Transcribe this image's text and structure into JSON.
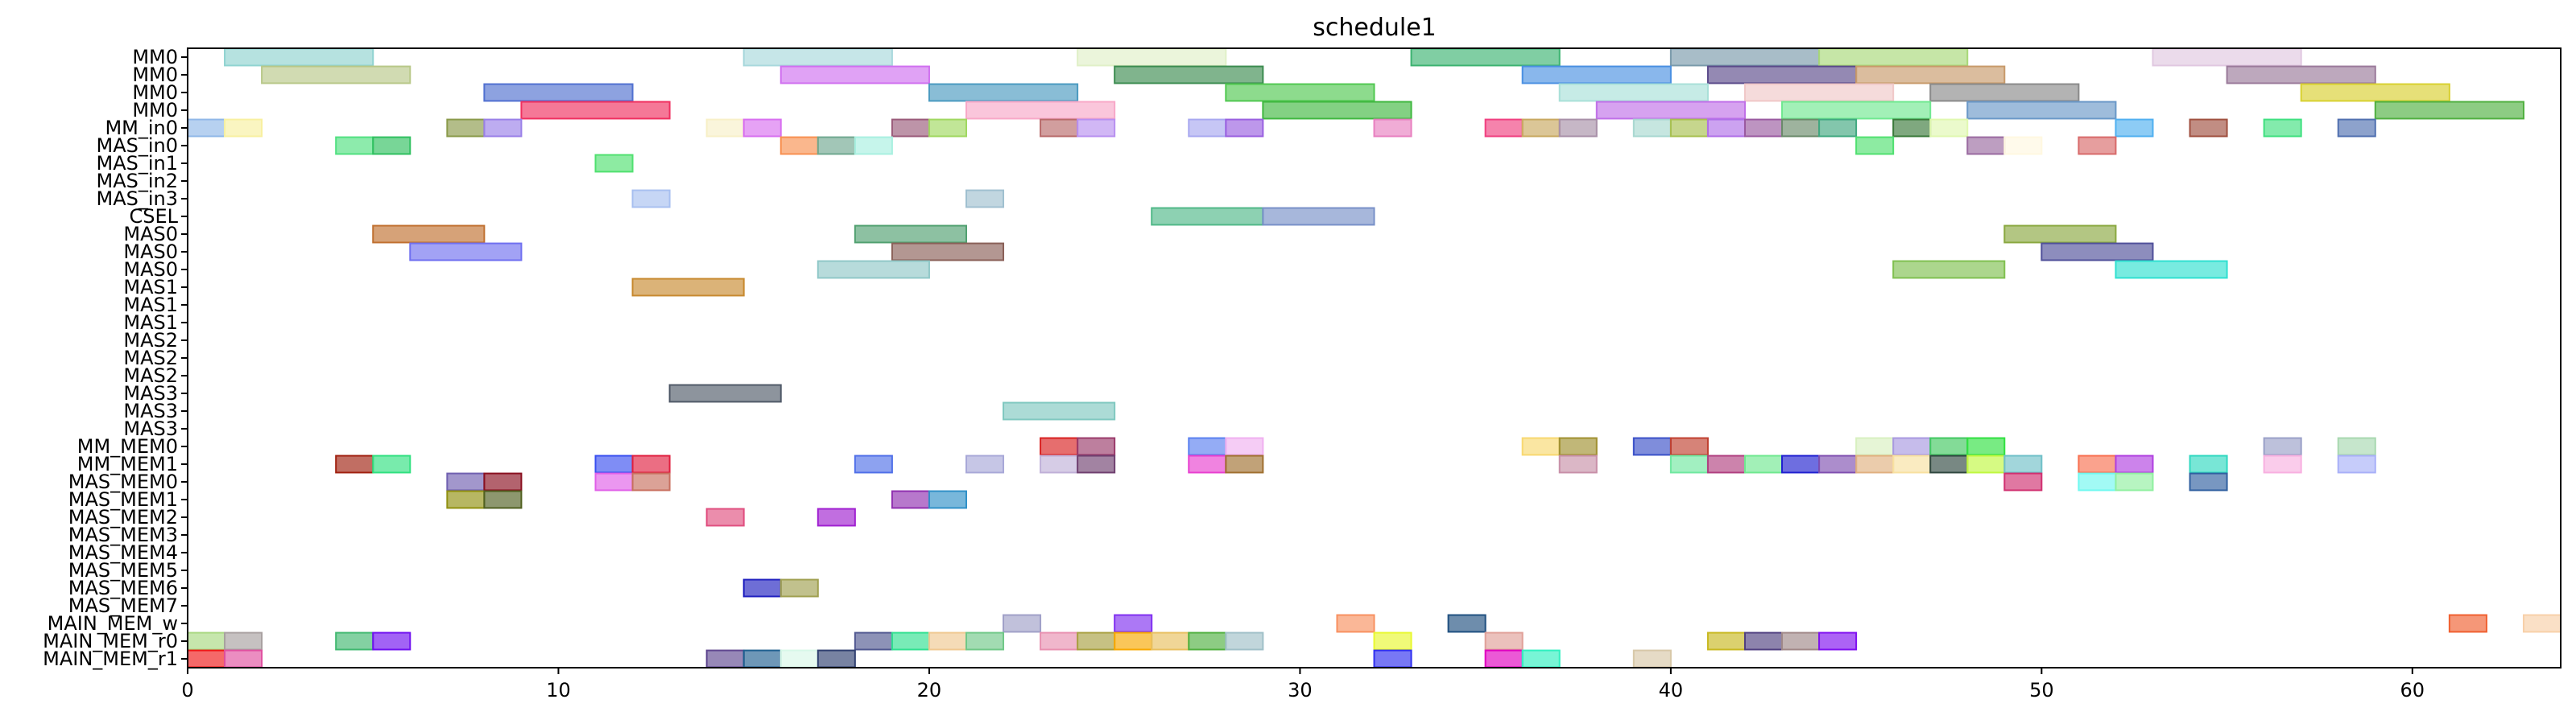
{
  "chart_data": {
    "type": "gantt",
    "title": "schedule1",
    "xlim": [
      0,
      64
    ],
    "x_ticks": [
      0,
      10,
      20,
      30,
      40,
      50,
      60
    ],
    "rows": [
      "MM0",
      "MM0",
      "MM0",
      "MM0",
      "MM_in0",
      "MAS_in0",
      "MAS_in1",
      "MAS_in2",
      "MAS_in3",
      "CSEL",
      "MAS0",
      "MAS0",
      "MAS0",
      "MAS1",
      "MAS1",
      "MAS1",
      "MAS2",
      "MAS2",
      "MAS2",
      "MAS3",
      "MAS3",
      "MAS3",
      "MM_MEM0",
      "MM_MEM1",
      "MAS_MEM0",
      "MAS_MEM1",
      "MAS_MEM2",
      "MAS_MEM3",
      "MAS_MEM4",
      "MAS_MEM5",
      "MAS_MEM6",
      "MAS_MEM7",
      "MAIN_MEM_w",
      "MAIN_MEM_r0",
      "MAIN_MEM_r1"
    ],
    "tasks": [
      {
        "row": 0,
        "start": 1,
        "end": 5,
        "color": "#8fd3d0"
      },
      {
        "row": 0,
        "start": 15,
        "end": 19,
        "color": "#a8d8dc"
      },
      {
        "row": 0,
        "start": 24,
        "end": 28,
        "color": "#e0f0c8"
      },
      {
        "row": 0,
        "start": 33,
        "end": 37,
        "color": "#3cb371"
      },
      {
        "row": 0,
        "start": 40,
        "end": 44,
        "color": "#7a9aaa"
      },
      {
        "row": 0,
        "start": 44,
        "end": 48,
        "color": "#a8d878"
      },
      {
        "row": 0,
        "start": 53,
        "end": 57,
        "color": "#e0c8e0"
      },
      {
        "row": 1,
        "start": 2,
        "end": 6,
        "color": "#b8c888"
      },
      {
        "row": 1,
        "start": 16,
        "end": 20,
        "color": "#d070f0"
      },
      {
        "row": 1,
        "start": 25,
        "end": 29,
        "color": "#3c8c50"
      },
      {
        "row": 1,
        "start": 36,
        "end": 40,
        "color": "#4a90e2"
      },
      {
        "row": 1,
        "start": 41,
        "end": 45,
        "color": "#5a4a8a"
      },
      {
        "row": 1,
        "start": 45,
        "end": 49,
        "color": "#c89a6a"
      },
      {
        "row": 1,
        "start": 55,
        "end": 59,
        "color": "#9a7a9a"
      },
      {
        "row": 2,
        "start": 8,
        "end": 12,
        "color": "#5070d0"
      },
      {
        "row": 2,
        "start": 20,
        "end": 24,
        "color": "#4a9ac0"
      },
      {
        "row": 2,
        "start": 28,
        "end": 32,
        "color": "#50c850"
      },
      {
        "row": 2,
        "start": 37,
        "end": 41,
        "color": "#a8e0d8"
      },
      {
        "row": 2,
        "start": 42,
        "end": 46,
        "color": "#f0c8c8"
      },
      {
        "row": 2,
        "start": 47,
        "end": 51,
        "color": "#8a8a8a"
      },
      {
        "row": 2,
        "start": 57,
        "end": 61,
        "color": "#d8d030"
      },
      {
        "row": 3,
        "start": 9,
        "end": 13,
        "color": "#f03060"
      },
      {
        "row": 3,
        "start": 21,
        "end": 25,
        "color": "#f8a8c8"
      },
      {
        "row": 3,
        "start": 29,
        "end": 33,
        "color": "#40b840"
      },
      {
        "row": 3,
        "start": 38,
        "end": 42,
        "color": "#c070e8"
      },
      {
        "row": 3,
        "start": 43,
        "end": 47,
        "color": "#70e890"
      },
      {
        "row": 3,
        "start": 48,
        "end": 52,
        "color": "#6a98c8"
      },
      {
        "row": 3,
        "start": 59,
        "end": 63,
        "color": "#50b040"
      },
      {
        "row": 4,
        "start": 0,
        "end": 1,
        "color": "#90b8e8"
      },
      {
        "row": 4,
        "start": 1,
        "end": 2,
        "color": "#f8f0a0"
      },
      {
        "row": 4,
        "start": 7,
        "end": 8,
        "color": "#8a9a4a"
      },
      {
        "row": 4,
        "start": 8,
        "end": 9,
        "color": "#9a80e8"
      },
      {
        "row": 4,
        "start": 14,
        "end": 15,
        "color": "#f8f0c8"
      },
      {
        "row": 4,
        "start": 15,
        "end": 16,
        "color": "#d870f0"
      },
      {
        "row": 4,
        "start": 19,
        "end": 20,
        "color": "#9a5a7a"
      },
      {
        "row": 4,
        "start": 20,
        "end": 21,
        "color": "#a0d860"
      },
      {
        "row": 4,
        "start": 23,
        "end": 24,
        "color": "#b86a6a"
      },
      {
        "row": 4,
        "start": 24,
        "end": 25,
        "color": "#b890f0"
      },
      {
        "row": 4,
        "start": 27,
        "end": 28,
        "color": "#a8a8f0"
      },
      {
        "row": 4,
        "start": 28,
        "end": 29,
        "color": "#9a60e0"
      },
      {
        "row": 4,
        "start": 32,
        "end": 33,
        "color": "#e880c0"
      },
      {
        "row": 4,
        "start": 35,
        "end": 36,
        "color": "#f04080"
      },
      {
        "row": 4,
        "start": 36,
        "end": 37,
        "color": "#c8a860"
      },
      {
        "row": 4,
        "start": 37,
        "end": 38,
        "color": "#a890a8"
      },
      {
        "row": 4,
        "start": 39,
        "end": 40,
        "color": "#a8d8d0"
      },
      {
        "row": 4,
        "start": 40,
        "end": 41,
        "color": "#a8c050"
      },
      {
        "row": 4,
        "start": 41,
        "end": 42,
        "color": "#b070e8"
      },
      {
        "row": 4,
        "start": 42,
        "end": 43,
        "color": "#9a5aa0"
      },
      {
        "row": 4,
        "start": 43,
        "end": 44,
        "color": "#6a8a6a"
      },
      {
        "row": 4,
        "start": 44,
        "end": 45,
        "color": "#40a880"
      },
      {
        "row": 4,
        "start": 46,
        "end": 47,
        "color": "#3a7a3a"
      },
      {
        "row": 4,
        "start": 47,
        "end": 48,
        "color": "#e0f8b0"
      },
      {
        "row": 4,
        "start": 52,
        "end": 53,
        "color": "#50b0f0"
      },
      {
        "row": 4,
        "start": 54,
        "end": 55,
        "color": "#a05040"
      },
      {
        "row": 4,
        "start": 56,
        "end": 57,
        "color": "#40e080"
      },
      {
        "row": 4,
        "start": 58,
        "end": 59,
        "color": "#5070b0"
      },
      {
        "row": 5,
        "start": 4,
        "end": 5,
        "color": "#50e080"
      },
      {
        "row": 5,
        "start": 5,
        "end": 6,
        "color": "#30c060"
      },
      {
        "row": 5,
        "start": 16,
        "end": 17,
        "color": "#f89050"
      },
      {
        "row": 5,
        "start": 17,
        "end": 18,
        "color": "#70a890"
      },
      {
        "row": 5,
        "start": 18,
        "end": 19,
        "color": "#a8f0e0"
      },
      {
        "row": 5,
        "start": 45,
        "end": 46,
        "color": "#50e070"
      },
      {
        "row": 5,
        "start": 48,
        "end": 49,
        "color": "#9a6aa0"
      },
      {
        "row": 5,
        "start": 49,
        "end": 50,
        "color": "#fff8e0"
      },
      {
        "row": 5,
        "start": 51,
        "end": 52,
        "color": "#d86a6a"
      },
      {
        "row": 6,
        "start": 11,
        "end": 12,
        "color": "#50e070"
      },
      {
        "row": 8,
        "start": 12,
        "end": 13,
        "color": "#a8c0f0"
      },
      {
        "row": 8,
        "start": 21,
        "end": 22,
        "color": "#a0c0d0"
      },
      {
        "row": 9,
        "start": 26,
        "end": 29,
        "color": "#50b888"
      },
      {
        "row": 9,
        "start": 29,
        "end": 32,
        "color": "#7890c8"
      },
      {
        "row": 10,
        "start": 5,
        "end": 8,
        "color": "#c07030"
      },
      {
        "row": 10,
        "start": 18,
        "end": 21,
        "color": "#50a070"
      },
      {
        "row": 10,
        "start": 49,
        "end": 52,
        "color": "#8aa840"
      },
      {
        "row": 11,
        "start": 6,
        "end": 9,
        "color": "#7070f0"
      },
      {
        "row": 11,
        "start": 19,
        "end": 22,
        "color": "#8a6058"
      },
      {
        "row": 11,
        "start": 50,
        "end": 53,
        "color": "#50509a"
      },
      {
        "row": 12,
        "start": 17,
        "end": 20,
        "color": "#90c8c8"
      },
      {
        "row": 12,
        "start": 46,
        "end": 49,
        "color": "#80c050"
      },
      {
        "row": 12,
        "start": 52,
        "end": 55,
        "color": "#30e0d0"
      },
      {
        "row": 13,
        "start": 12,
        "end": 15,
        "color": "#c88a30"
      },
      {
        "row": 19,
        "start": 13,
        "end": 16,
        "color": "#505a68"
      },
      {
        "row": 20,
        "start": 22,
        "end": 25,
        "color": "#80c8c0"
      },
      {
        "row": 22,
        "start": 23,
        "end": 24,
        "color": "#d82020"
      },
      {
        "row": 22,
        "start": 24,
        "end": 25,
        "color": "#9a3a6a"
      },
      {
        "row": 22,
        "start": 27,
        "end": 28,
        "color": "#5a80f0"
      },
      {
        "row": 22,
        "start": 28,
        "end": 29,
        "color": "#f0b0f0"
      },
      {
        "row": 22,
        "start": 36,
        "end": 37,
        "color": "#f8d870"
      },
      {
        "row": 22,
        "start": 37,
        "end": 38,
        "color": "#a09030"
      },
      {
        "row": 22,
        "start": 39,
        "end": 40,
        "color": "#3a50c8"
      },
      {
        "row": 22,
        "start": 40,
        "end": 41,
        "color": "#c04030"
      },
      {
        "row": 22,
        "start": 45,
        "end": 46,
        "color": "#d8f0c0"
      },
      {
        "row": 22,
        "start": 46,
        "end": 47,
        "color": "#a898e0"
      },
      {
        "row": 22,
        "start": 47,
        "end": 48,
        "color": "#40c860"
      },
      {
        "row": 22,
        "start": 48,
        "end": 49,
        "color": "#30e040"
      },
      {
        "row": 22,
        "start": 56,
        "end": 57,
        "color": "#9aa0c8"
      },
      {
        "row": 22,
        "start": 58,
        "end": 59,
        "color": "#a8d8b0"
      },
      {
        "row": 23,
        "start": 4,
        "end": 5,
        "color": "#a02010"
      },
      {
        "row": 23,
        "start": 5,
        "end": 6,
        "color": "#30e080"
      },
      {
        "row": 23,
        "start": 11,
        "end": 12,
        "color": "#3a50f0"
      },
      {
        "row": 23,
        "start": 12,
        "end": 13,
        "color": "#e02040"
      },
      {
        "row": 23,
        "start": 18,
        "end": 19,
        "color": "#5070e8"
      },
      {
        "row": 23,
        "start": 21,
        "end": 22,
        "color": "#a8a8d8"
      },
      {
        "row": 23,
        "start": 23,
        "end": 24,
        "color": "#c0b0d8"
      },
      {
        "row": 23,
        "start": 24,
        "end": 25,
        "color": "#704070"
      },
      {
        "row": 23,
        "start": 27,
        "end": 28,
        "color": "#e840d0"
      },
      {
        "row": 23,
        "start": 28,
        "end": 29,
        "color": "#a07030"
      },
      {
        "row": 23,
        "start": 37,
        "end": 38,
        "color": "#c890a8"
      },
      {
        "row": 23,
        "start": 40,
        "end": 41,
        "color": "#70e8a0"
      },
      {
        "row": 23,
        "start": 41,
        "end": 42,
        "color": "#b04080"
      },
      {
        "row": 23,
        "start": 42,
        "end": 43,
        "color": "#70e890"
      },
      {
        "row": 23,
        "start": 43,
        "end": 44,
        "color": "#2020d0"
      },
      {
        "row": 23,
        "start": 44,
        "end": 45,
        "color": "#8050b0"
      },
      {
        "row": 23,
        "start": 45,
        "end": 46,
        "color": "#e0b080"
      },
      {
        "row": 23,
        "start": 46,
        "end": 47,
        "color": "#f8e0a0"
      },
      {
        "row": 23,
        "start": 47,
        "end": 48,
        "color": "#304840"
      },
      {
        "row": 23,
        "start": 48,
        "end": 49,
        "color": "#c0f840"
      },
      {
        "row": 23,
        "start": 49,
        "end": 50,
        "color": "#70c0c8"
      },
      {
        "row": 23,
        "start": 51,
        "end": 52,
        "color": "#f87050"
      },
      {
        "row": 23,
        "start": 52,
        "end": 53,
        "color": "#b040e0"
      },
      {
        "row": 23,
        "start": 54,
        "end": 55,
        "color": "#30d8c0"
      },
      {
        "row": 23,
        "start": 56,
        "end": 57,
        "color": "#f8b0e0"
      },
      {
        "row": 23,
        "start": 58,
        "end": 59,
        "color": "#a8b0f8"
      },
      {
        "row": 24,
        "start": 7,
        "end": 8,
        "color": "#7060b0"
      },
      {
        "row": 24,
        "start": 8,
        "end": 9,
        "color": "#8a1020"
      },
      {
        "row": 24,
        "start": 11,
        "end": 12,
        "color": "#e060e8"
      },
      {
        "row": 24,
        "start": 12,
        "end": 13,
        "color": "#c87060"
      },
      {
        "row": 24,
        "start": 49,
        "end": 50,
        "color": "#d03070"
      },
      {
        "row": 24,
        "start": 51,
        "end": 52,
        "color": "#70f8f0"
      },
      {
        "row": 24,
        "start": 52,
        "end": 53,
        "color": "#90f0a0"
      },
      {
        "row": 24,
        "start": 54,
        "end": 55,
        "color": "#3060a0"
      },
      {
        "row": 25,
        "start": 7,
        "end": 8,
        "color": "#909010"
      },
      {
        "row": 25,
        "start": 8,
        "end": 9,
        "color": "#506020"
      },
      {
        "row": 25,
        "start": 19,
        "end": 20,
        "color": "#9030b0"
      },
      {
        "row": 25,
        "start": 20,
        "end": 21,
        "color": "#3090c8"
      },
      {
        "row": 26,
        "start": 14,
        "end": 15,
        "color": "#e05080"
      },
      {
        "row": 26,
        "start": 17,
        "end": 18,
        "color": "#a020d0"
      },
      {
        "row": 30,
        "start": 15,
        "end": 16,
        "color": "#2020c0"
      },
      {
        "row": 30,
        "start": 16,
        "end": 17,
        "color": "#a0a050"
      },
      {
        "row": 32,
        "start": 22,
        "end": 23,
        "color": "#a0a0c8"
      },
      {
        "row": 32,
        "start": 25,
        "end": 26,
        "color": "#8030f0"
      },
      {
        "row": 32,
        "start": 31,
        "end": 32,
        "color": "#f89060"
      },
      {
        "row": 32,
        "start": 34,
        "end": 35,
        "color": "#205080"
      },
      {
        "row": 32,
        "start": 61,
        "end": 62,
        "color": "#f06030"
      },
      {
        "row": 32,
        "start": 63,
        "end": 64,
        "color": "#f8d0a8"
      },
      {
        "row": 33,
        "start": 0,
        "end": 1,
        "color": "#a8d880"
      },
      {
        "row": 33,
        "start": 1,
        "end": 2,
        "color": "#a8a0a0"
      },
      {
        "row": 33,
        "start": 4,
        "end": 5,
        "color": "#40b870"
      },
      {
        "row": 33,
        "start": 5,
        "end": 6,
        "color": "#7010f0"
      },
      {
        "row": 33,
        "start": 18,
        "end": 19,
        "color": "#505890"
      },
      {
        "row": 33,
        "start": 19,
        "end": 20,
        "color": "#30e090"
      },
      {
        "row": 33,
        "start": 20,
        "end": 21,
        "color": "#f0c890"
      },
      {
        "row": 33,
        "start": 21,
        "end": 22,
        "color": "#70c888"
      },
      {
        "row": 33,
        "start": 23,
        "end": 24,
        "color": "#e890b0"
      },
      {
        "row": 33,
        "start": 24,
        "end": 25,
        "color": "#a8a040"
      },
      {
        "row": 33,
        "start": 25,
        "end": 26,
        "color": "#f8a800"
      },
      {
        "row": 33,
        "start": 26,
        "end": 27,
        "color": "#e8c060"
      },
      {
        "row": 33,
        "start": 27,
        "end": 28,
        "color": "#50b040"
      },
      {
        "row": 33,
        "start": 28,
        "end": 29,
        "color": "#a0c0c8"
      },
      {
        "row": 33,
        "start": 32,
        "end": 33,
        "color": "#e8f830"
      },
      {
        "row": 33,
        "start": 35,
        "end": 36,
        "color": "#e0a098"
      },
      {
        "row": 33,
        "start": 41,
        "end": 42,
        "color": "#c8b820"
      },
      {
        "row": 33,
        "start": 42,
        "end": 43,
        "color": "#504080"
      },
      {
        "row": 33,
        "start": 43,
        "end": 44,
        "color": "#a08888"
      },
      {
        "row": 33,
        "start": 44,
        "end": 45,
        "color": "#8010f0"
      },
      {
        "row": 34,
        "start": 0,
        "end": 1,
        "color": "#f01818"
      },
      {
        "row": 34,
        "start": 1,
        "end": 2,
        "color": "#e050a0"
      },
      {
        "row": 34,
        "start": 14,
        "end": 15,
        "color": "#604890"
      },
      {
        "row": 34,
        "start": 15,
        "end": 16,
        "color": "#206090"
      },
      {
        "row": 34,
        "start": 16,
        "end": 17,
        "color": "#d8f8e8"
      },
      {
        "row": 34,
        "start": 17,
        "end": 18,
        "color": "#304070"
      },
      {
        "row": 34,
        "start": 32,
        "end": 33,
        "color": "#3030f0"
      },
      {
        "row": 34,
        "start": 35,
        "end": 36,
        "color": "#e000c0"
      },
      {
        "row": 34,
        "start": 36,
        "end": 37,
        "color": "#30f0c0"
      },
      {
        "row": 34,
        "start": 39,
        "end": 40,
        "color": "#d8c8a8"
      }
    ]
  }
}
